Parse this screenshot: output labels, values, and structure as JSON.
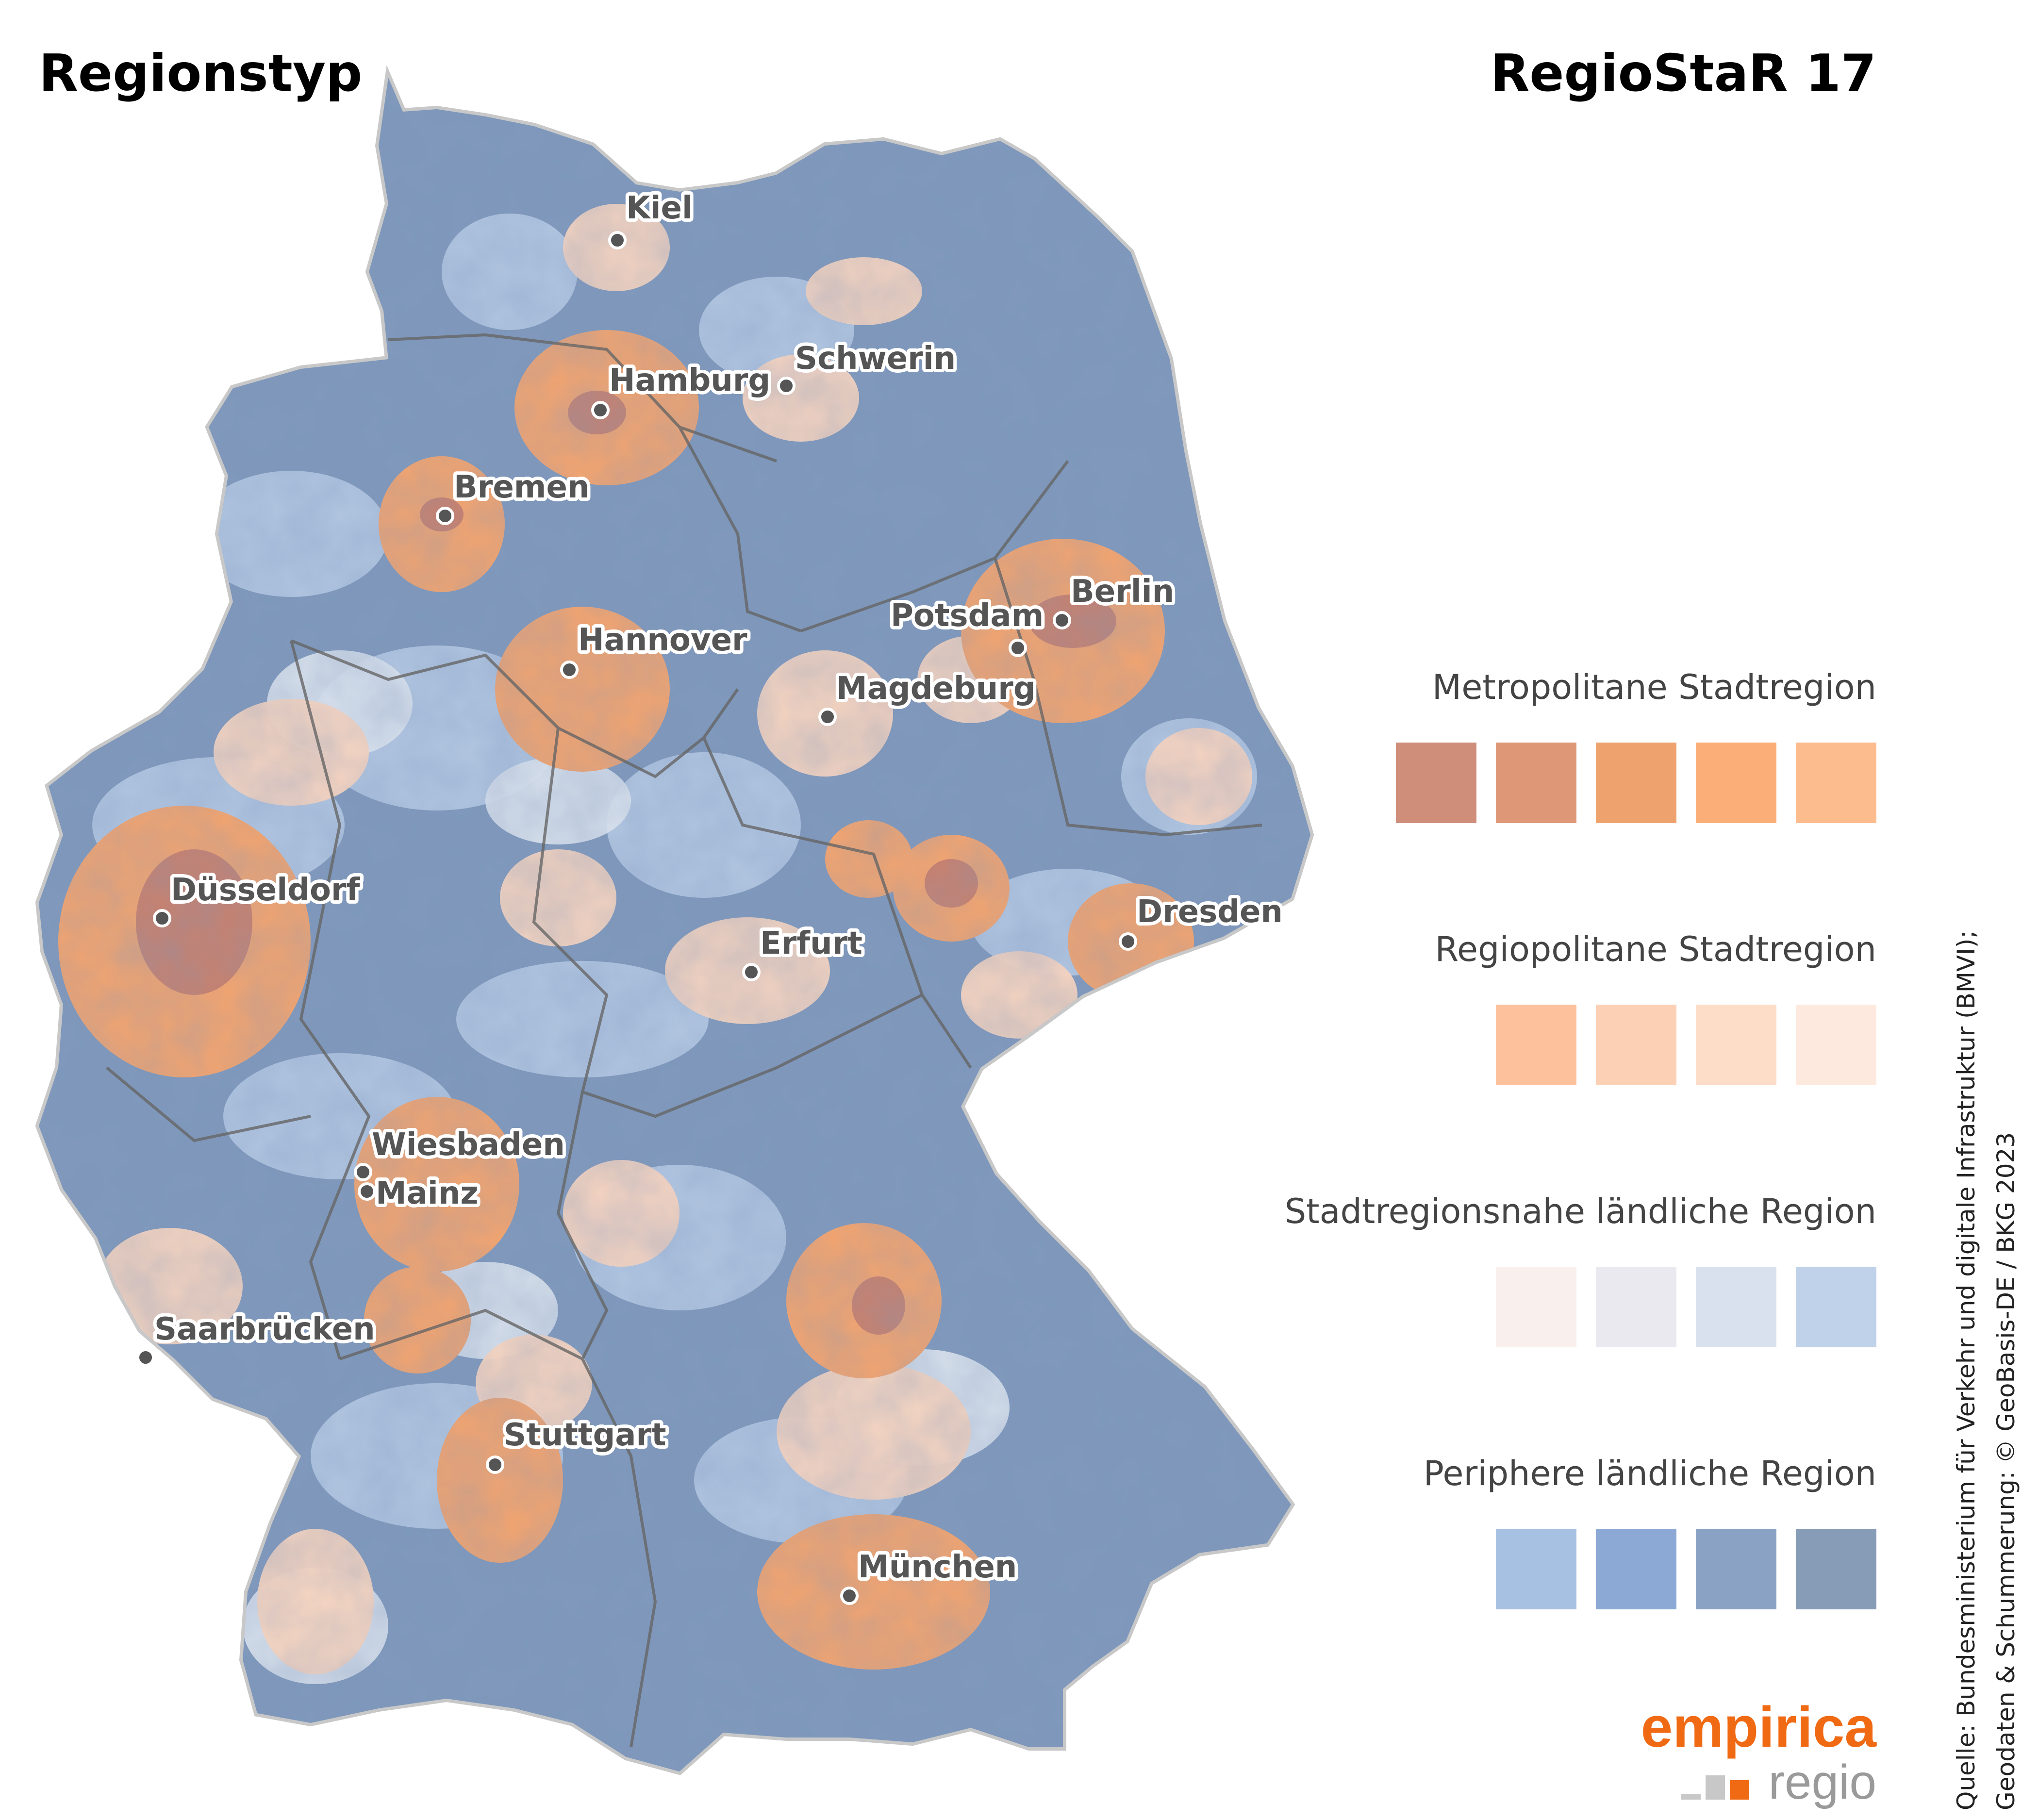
{
  "title_left": "Regionstyp",
  "title_right": "RegioStaR 17",
  "cities": [
    {
      "name": "Kiel"
    },
    {
      "name": "Hamburg"
    },
    {
      "name": "Schwerin"
    },
    {
      "name": "Bremen"
    },
    {
      "name": "Berlin"
    },
    {
      "name": "Potsdam"
    },
    {
      "name": "Hannover"
    },
    {
      "name": "Magdeburg"
    },
    {
      "name": "Düsseldorf"
    },
    {
      "name": "Dresden"
    },
    {
      "name": "Erfurt"
    },
    {
      "name": "Wiesbaden"
    },
    {
      "name": "Mainz"
    },
    {
      "name": "Saarbrücken"
    },
    {
      "name": "Stuttgart"
    },
    {
      "name": "München"
    }
  ],
  "legend": [
    {
      "label": "Metropolitane Stadtregion",
      "colors": [
        "#cf8e7a",
        "#de9878",
        "#eea36f",
        "#fbae78",
        "#fdbc8e"
      ]
    },
    {
      "label": "Regiopolitane Stadtregion",
      "colors": [
        "#fdc29b",
        "#fcd0b4",
        "#fddcc8",
        "#fde9dd"
      ]
    },
    {
      "label": "Stadtregionsnahe ländliche Region",
      "colors": [
        "#f9efed",
        "#e9e9ef",
        "#d9e1ee",
        "#c0d2e9"
      ]
    },
    {
      "label": "Periphere ländliche Region",
      "colors": [
        "#a7c1e2",
        "#8ba9d4",
        "#8aa2c4",
        "#879cb6"
      ]
    }
  ],
  "source_line1": "Quelle: Bundesministerium für Verkehr und digitale Infrastruktur (BMVI);",
  "source_line2": "Geodaten & Schummerung: © GeoBasis-DE / BKG 2023",
  "logo": {
    "name": "empirica",
    "sub": "regio",
    "accent": "#f06a14"
  }
}
